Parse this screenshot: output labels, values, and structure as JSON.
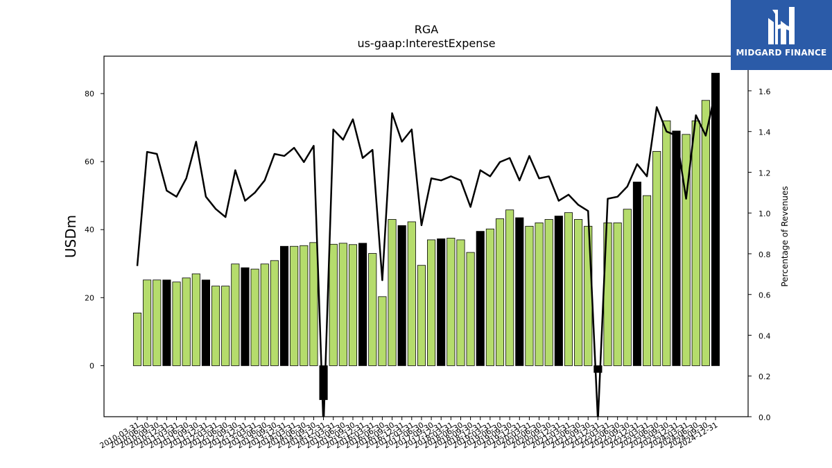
{
  "brand": {
    "name": "MIDGARD FINANCE",
    "background": "#2b5ba8",
    "icon": "midgard-logo-icon"
  },
  "chart_data": {
    "type": "bar",
    "title": "RGA",
    "subtitle": "us-gaap:InterestExpense",
    "ylabel": "USDm",
    "y2label": "Percentage of Revenues",
    "ylim": [
      -15,
      91
    ],
    "y2lim": [
      0.0,
      1.77
    ],
    "yticks": [
      0,
      20,
      40,
      60,
      80
    ],
    "y2ticks": [
      0.0,
      0.2,
      0.4,
      0.6,
      0.8,
      1.0,
      1.2,
      1.4,
      1.6
    ],
    "grid": false,
    "colors": {
      "quarter": "#b5dc6c",
      "year_end": "#000000",
      "line": "#000000"
    },
    "categories": [
      "2010-03-31",
      "2010-06-30",
      "2010-09-30",
      "2010-12-31",
      "2011-03-31",
      "2011-06-30",
      "2011-09-30",
      "2011-12-31",
      "2012-03-31",
      "2012-06-30",
      "2012-09-30",
      "2012-12-31",
      "2013-03-31",
      "2013-06-30",
      "2013-09-30",
      "2013-12-31",
      "2014-03-31",
      "2014-06-30",
      "2014-09-30",
      "2014-12-31",
      "2015-03-31",
      "2015-06-30",
      "2015-09-30",
      "2015-12-31",
      "2016-03-31",
      "2016-06-30",
      "2016-09-30",
      "2016-12-31",
      "2017-03-31",
      "2017-06-30",
      "2017-09-30",
      "2017-12-31",
      "2018-03-31",
      "2018-06-30",
      "2018-09-30",
      "2018-12-31",
      "2019-03-31",
      "2019-06-30",
      "2019-09-30",
      "2019-12-31",
      "2020-03-31",
      "2020-06-30",
      "2020-09-30",
      "2020-12-31",
      "2021-03-31",
      "2021-06-30",
      "2021-09-30",
      "2021-12-31",
      "2022-03-31",
      "2022-06-30",
      "2022-09-30",
      "2022-12-31",
      "2023-03-31",
      "2023-06-30",
      "2023-09-30",
      "2023-12-31",
      "2024-03-31",
      "2024-06-30",
      "2024-09-30",
      "2024-12-31"
    ],
    "series": [
      {
        "type": "bar",
        "axis": "left",
        "values": [
          15.5,
          25.2,
          25.2,
          25.2,
          24.6,
          25.8,
          27.0,
          25.2,
          23.4,
          23.4,
          29.9,
          28.8,
          28.4,
          29.9,
          30.9,
          35.1,
          35.1,
          35.3,
          36.2,
          -10.0,
          35.7,
          36.0,
          35.6,
          36.0,
          33.0,
          20.3,
          43.0,
          41.2,
          42.3,
          29.5,
          37.0,
          37.3,
          37.5,
          37.0,
          33.3,
          39.5,
          40.2,
          43.2,
          45.8,
          43.5,
          41.0,
          42.0,
          43.0,
          44.0,
          45.0,
          43.0,
          41.0,
          -2.0,
          42.0,
          42.0,
          46.0,
          54.0,
          50.0,
          63.0,
          72.0,
          69.0,
          68.0,
          72.0,
          78.0,
          86.0
        ],
        "year_end": [
          false,
          false,
          false,
          true,
          false,
          false,
          false,
          true,
          false,
          false,
          false,
          true,
          false,
          false,
          false,
          true,
          false,
          false,
          false,
          true,
          false,
          false,
          false,
          true,
          false,
          false,
          false,
          true,
          false,
          false,
          false,
          true,
          false,
          false,
          false,
          true,
          false,
          false,
          false,
          true,
          false,
          false,
          false,
          true,
          false,
          false,
          false,
          true,
          false,
          false,
          false,
          true,
          false,
          false,
          false,
          true,
          false,
          false,
          false,
          true
        ]
      },
      {
        "type": "line",
        "axis": "right",
        "values": [
          0.74,
          1.3,
          1.29,
          1.11,
          1.08,
          1.17,
          1.35,
          1.08,
          1.02,
          0.98,
          1.21,
          1.06,
          1.1,
          1.16,
          1.29,
          1.28,
          1.32,
          1.25,
          1.33,
          -0.05,
          1.41,
          1.36,
          1.46,
          1.27,
          1.31,
          0.67,
          1.49,
          1.35,
          1.41,
          0.94,
          1.17,
          1.16,
          1.18,
          1.16,
          1.03,
          1.21,
          1.18,
          1.25,
          1.27,
          1.16,
          1.28,
          1.17,
          1.18,
          1.06,
          1.09,
          1.04,
          1.01,
          -0.02,
          1.07,
          1.08,
          1.13,
          1.24,
          1.18,
          1.52,
          1.4,
          1.38,
          1.07,
          1.48,
          1.38,
          1.6
        ]
      }
    ]
  }
}
